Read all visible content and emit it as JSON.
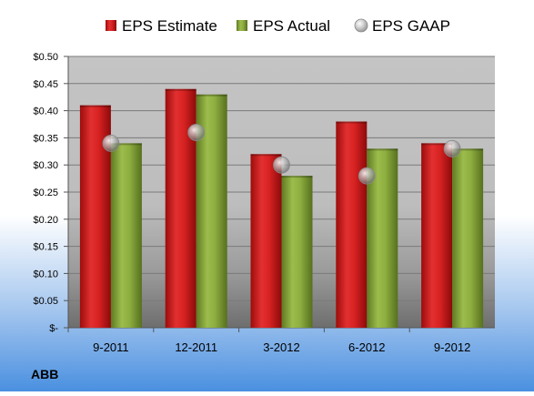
{
  "chart_data": {
    "type": "bar",
    "categories": [
      "9-2011",
      "12-2011",
      "3-2012",
      "6-2012",
      "9-2012"
    ],
    "series": [
      {
        "name": "EPS Estimate",
        "values": [
          0.41,
          0.44,
          0.32,
          0.38,
          0.34
        ],
        "color": "#d42020"
      },
      {
        "name": "EPS Actual",
        "values": [
          0.34,
          0.43,
          0.28,
          0.33,
          0.33
        ],
        "color": "#8aaa3c"
      }
    ],
    "gaap": {
      "name": "EPS GAAP",
      "values": [
        0.34,
        0.36,
        0.3,
        0.28,
        0.33
      ],
      "color": "#b8b8b8"
    },
    "y_ticks": [
      "$-",
      "$0.05",
      "$0.10",
      "$0.15",
      "$0.20",
      "$0.25",
      "$0.30",
      "$0.35",
      "$0.40",
      "$0.45",
      "$0.50"
    ],
    "ylim": [
      0,
      0.5
    ],
    "y_step": 0.05,
    "grid": true,
    "legend_position": "top",
    "ticker": "ABB"
  }
}
